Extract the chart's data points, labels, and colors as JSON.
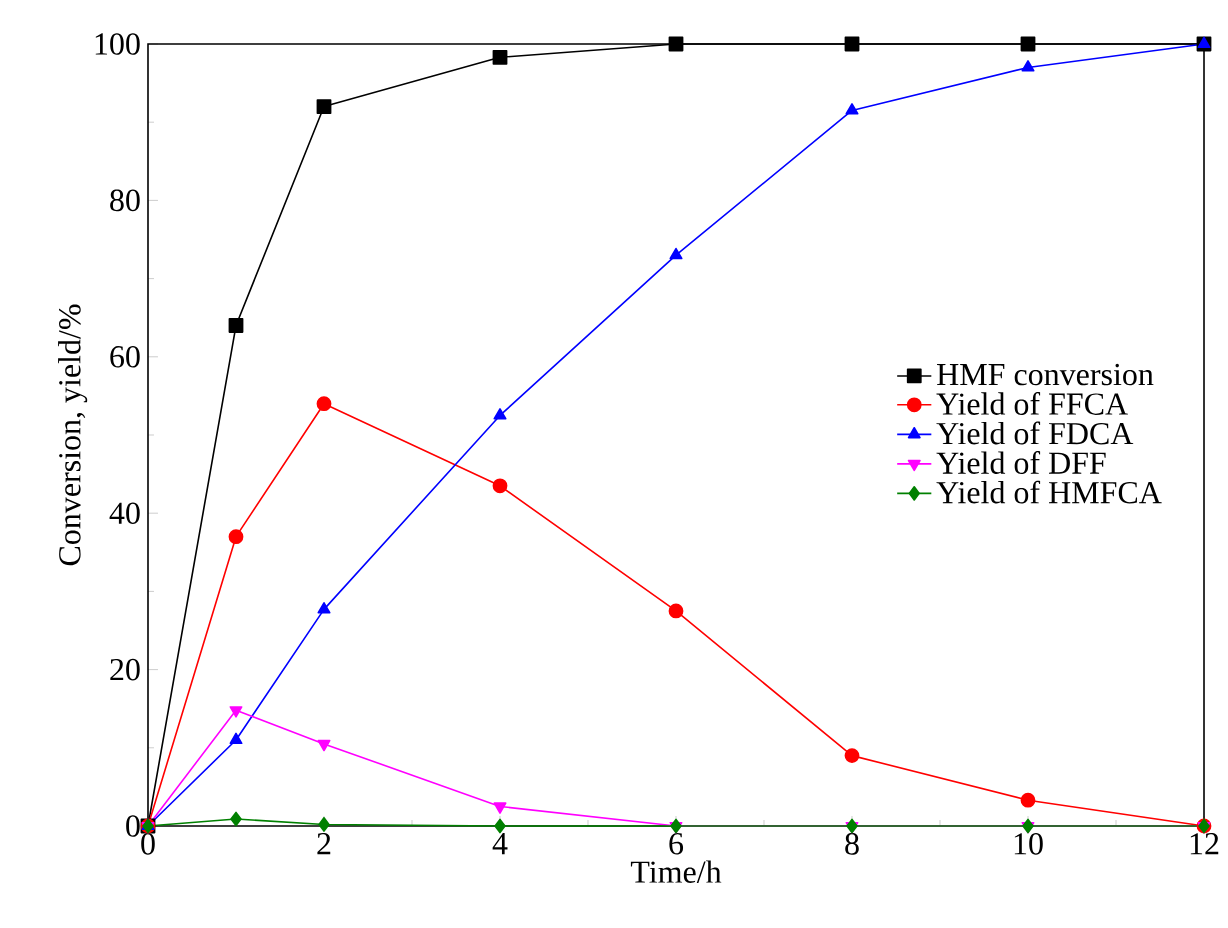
{
  "chart_data": {
    "type": "line",
    "xlabel": "Time/h",
    "ylabel": "Conversion, yield/%",
    "x": [
      0,
      1,
      2,
      4,
      6,
      8,
      10,
      12
    ],
    "xlim": [
      0,
      12
    ],
    "xticks": [
      0,
      2,
      4,
      6,
      8,
      10,
      12
    ],
    "ylim": [
      0,
      100
    ],
    "yticks": [
      0,
      20,
      40,
      60,
      80,
      100
    ],
    "grid": false,
    "legend": "right",
    "line_style": "solid",
    "series": [
      {
        "name": "HMF conversion",
        "color": "#000000",
        "marker": "square",
        "values": [
          0,
          64,
          92,
          98.3,
          100,
          100,
          100,
          100
        ]
      },
      {
        "name": "Yield of FFCA",
        "color": "#ff0000",
        "marker": "circle",
        "values": [
          0,
          37,
          54,
          43.5,
          27.5,
          9,
          3.3,
          0
        ]
      },
      {
        "name": "Yield of FDCA",
        "color": "#0000ff",
        "marker": "triangle",
        "values": [
          0,
          11,
          27.7,
          52.5,
          73,
          91.5,
          97,
          100
        ]
      },
      {
        "name": "Yield of DFF",
        "color": "#ff00ff",
        "marker": "triangle down",
        "values": [
          0,
          14.8,
          10.5,
          2.5,
          0,
          0,
          0,
          0
        ]
      },
      {
        "name": "Yield of HMFCA",
        "color": "#008000",
        "marker": "diamond",
        "values": [
          0,
          0.9,
          0.2,
          0,
          0,
          0,
          0,
          0
        ]
      }
    ]
  }
}
